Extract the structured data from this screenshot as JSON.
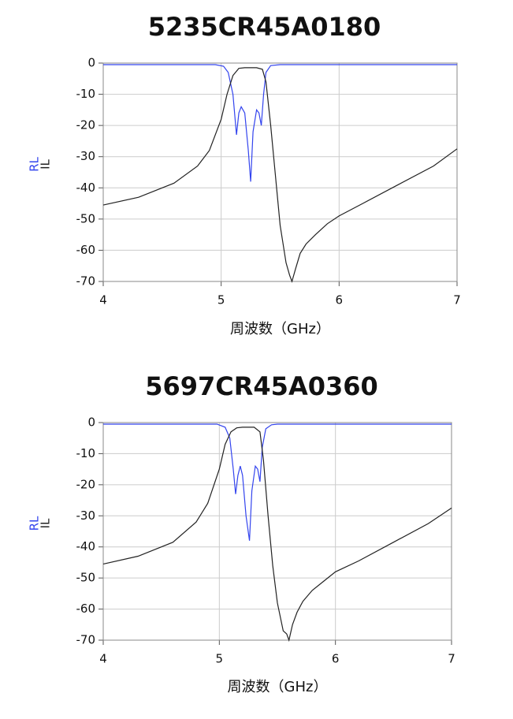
{
  "chart_data": [
    {
      "type": "line",
      "title": "5235CR45A0180",
      "x_label": "周波数（GHz）",
      "xlim": [
        4,
        7
      ],
      "ylim": [
        -70,
        0
      ],
      "xticks": [
        4,
        5,
        6,
        7
      ],
      "yticks": [
        0,
        -10,
        -20,
        -30,
        -40,
        -50,
        -60,
        -70
      ],
      "grid": true,
      "series": [
        {
          "name": "RL",
          "color": "#3344ee",
          "x": [
            4,
            4.5,
            4.95,
            5.02,
            5.06,
            5.1,
            5.13,
            5.15,
            5.17,
            5.2,
            5.23,
            5.25,
            5.27,
            5.3,
            5.32,
            5.34,
            5.36,
            5.38,
            5.42,
            5.5,
            6,
            7
          ],
          "values": [
            -0.5,
            -0.5,
            -0.5,
            -1,
            -3,
            -10,
            -23,
            -16,
            -14,
            -16,
            -28,
            -38,
            -22,
            -15,
            -16,
            -20,
            -10,
            -3,
            -0.8,
            -0.5,
            -0.5,
            -0.5
          ]
        },
        {
          "name": "IL",
          "color": "#222222",
          "x": [
            4,
            4.3,
            4.6,
            4.8,
            4.9,
            5.0,
            5.05,
            5.1,
            5.15,
            5.2,
            5.3,
            5.35,
            5.38,
            5.42,
            5.46,
            5.5,
            5.55,
            5.58,
            5.6,
            5.63,
            5.67,
            5.72,
            5.8,
            5.9,
            6.0,
            6.2,
            6.5,
            6.8,
            7
          ],
          "values": [
            -45.5,
            -43,
            -38.5,
            -33,
            -28,
            -18,
            -10,
            -4,
            -1.7,
            -1.5,
            -1.5,
            -2,
            -6,
            -20,
            -36,
            -52,
            -64,
            -68,
            -70,
            -66,
            -61,
            -58,
            -55,
            -51.5,
            -49,
            -45,
            -39,
            -33,
            -27.5
          ]
        }
      ]
    },
    {
      "type": "line",
      "title": "5697CR45A0360",
      "x_label": "周波数（GHz）",
      "xlim": [
        4,
        7
      ],
      "ylim": [
        -70,
        0
      ],
      "xticks": [
        4,
        5,
        6,
        7
      ],
      "yticks": [
        0,
        -10,
        -20,
        -30,
        -40,
        -50,
        -60,
        -70
      ],
      "grid": true,
      "series": [
        {
          "name": "RL",
          "color": "#3344ee",
          "x": [
            4,
            4.5,
            4.98,
            5.05,
            5.09,
            5.12,
            5.14,
            5.16,
            5.18,
            5.2,
            5.23,
            5.26,
            5.28,
            5.31,
            5.33,
            5.35,
            5.37,
            5.4,
            5.45,
            5.5,
            6,
            7
          ],
          "values": [
            -0.5,
            -0.5,
            -0.5,
            -1.5,
            -5,
            -15,
            -23,
            -17,
            -14,
            -17,
            -30,
            -38,
            -22,
            -14,
            -15,
            -19,
            -8,
            -2,
            -0.7,
            -0.5,
            -0.5,
            -0.5
          ]
        },
        {
          "name": "IL",
          "color": "#222222",
          "x": [
            4,
            4.3,
            4.6,
            4.8,
            4.9,
            5.0,
            5.05,
            5.1,
            5.15,
            5.2,
            5.3,
            5.35,
            5.38,
            5.42,
            5.46,
            5.5,
            5.55,
            5.58,
            5.6,
            5.63,
            5.67,
            5.72,
            5.8,
            5.9,
            6.0,
            6.2,
            6.5,
            6.8,
            7
          ],
          "values": [
            -45.5,
            -43,
            -38.5,
            -32,
            -26,
            -15,
            -7,
            -3,
            -1.7,
            -1.5,
            -1.5,
            -3,
            -12,
            -30,
            -46,
            -58,
            -67,
            -68,
            -70,
            -65,
            -61,
            -57.5,
            -54,
            -51,
            -48,
            -44.5,
            -38.5,
            -32.5,
            -27.5
          ]
        }
      ]
    }
  ]
}
